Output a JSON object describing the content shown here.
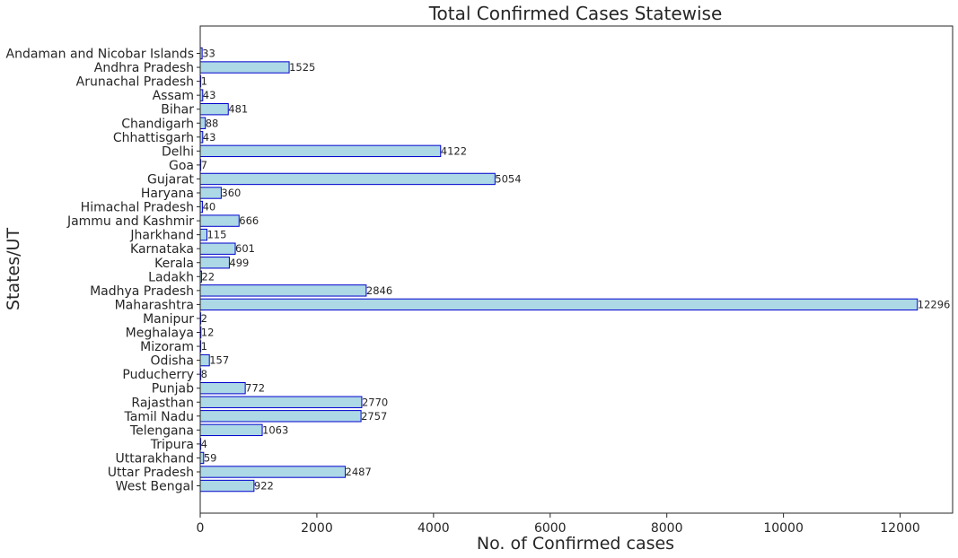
{
  "chart_data": {
    "type": "bar",
    "orientation": "horizontal",
    "title": "Total Confirmed Cases Statewise",
    "xlabel": "No. of Confirmed cases",
    "ylabel": "States/UT",
    "xlim": [
      0,
      12900
    ],
    "xticks": [
      0,
      2000,
      4000,
      6000,
      8000,
      10000,
      12000
    ],
    "grid": false,
    "bar_color": "#add8e6",
    "bar_edge_color": "#0000cd",
    "categories": [
      "Andaman and Nicobar Islands",
      "Andhra Pradesh",
      "Arunachal Pradesh",
      "Assam",
      "Bihar",
      "Chandigarh",
      "Chhattisgarh",
      "Delhi",
      "Goa",
      "Gujarat",
      "Haryana",
      "Himachal Pradesh",
      "Jammu and Kashmir",
      "Jharkhand",
      "Karnataka",
      "Kerala",
      "Ladakh",
      "Madhya Pradesh",
      "Maharashtra",
      "Manipur",
      "Meghalaya",
      "Mizoram",
      "Odisha",
      "Puducherry",
      "Punjab",
      "Rajasthan",
      "Tamil Nadu",
      "Telengana",
      "Tripura",
      "Uttarakhand",
      "Uttar Pradesh",
      "West Bengal"
    ],
    "values": [
      33,
      1525,
      1,
      43,
      481,
      88,
      43,
      4122,
      7,
      5054,
      360,
      40,
      666,
      115,
      601,
      499,
      22,
      2846,
      12296,
      2,
      12,
      1,
      157,
      8,
      772,
      2770,
      2757,
      1063,
      4,
      59,
      2487,
      922
    ]
  }
}
